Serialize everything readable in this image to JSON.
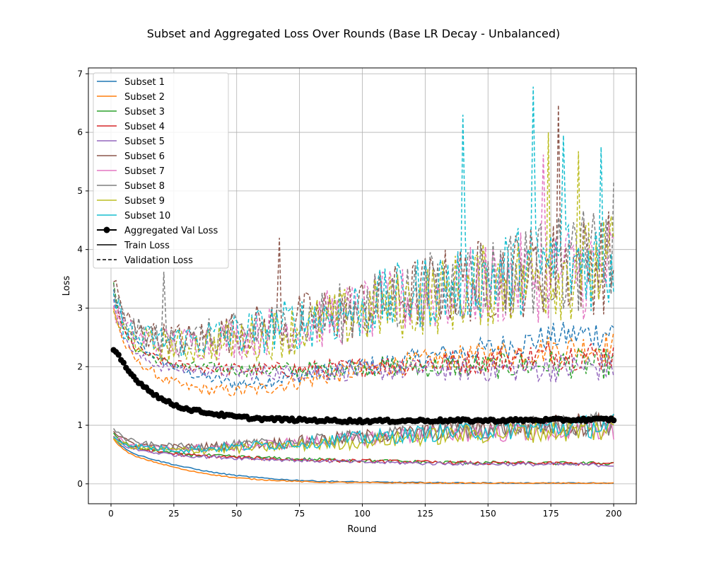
{
  "chart_data": {
    "type": "line",
    "title": "Subset and Aggregated Loss Over Rounds (Base LR Decay - Unbalanced)",
    "xlabel": "Round",
    "ylabel": "Loss",
    "xlim": [
      -9,
      209
    ],
    "ylim": [
      -0.34,
      7.1
    ],
    "xticks": [
      0,
      25,
      50,
      75,
      100,
      125,
      150,
      175,
      200
    ],
    "yticks": [
      0,
      1,
      2,
      3,
      4,
      5,
      6,
      7
    ],
    "grid": true,
    "legend_position": "upper-left",
    "legend": [
      {
        "label": "Subset 1",
        "color": "#1f77b4",
        "style": "solid"
      },
      {
        "label": "Subset 2",
        "color": "#ff7f0e",
        "style": "solid"
      },
      {
        "label": "Subset 3",
        "color": "#2ca02c",
        "style": "solid"
      },
      {
        "label": "Subset 4",
        "color": "#d62728",
        "style": "solid"
      },
      {
        "label": "Subset 5",
        "color": "#9467bd",
        "style": "solid"
      },
      {
        "label": "Subset 6",
        "color": "#8c564b",
        "style": "solid"
      },
      {
        "label": "Subset 7",
        "color": "#e377c2",
        "style": "solid"
      },
      {
        "label": "Subset 8",
        "color": "#7f7f7f",
        "style": "solid"
      },
      {
        "label": "Subset 9",
        "color": "#bcbd22",
        "style": "solid"
      },
      {
        "label": "Subset 10",
        "color": "#17becf",
        "style": "solid"
      },
      {
        "label": "Aggregated Val Loss",
        "color": "#000000",
        "style": "marker"
      },
      {
        "label": "Train Loss",
        "color": "#000000",
        "style": "solid"
      },
      {
        "label": "Validation Loss",
        "color": "#000000",
        "style": "dashed"
      }
    ],
    "series": [
      {
        "name": "Subset 1",
        "color": "#1f77b4",
        "train": [
          [
            1,
            0.78
          ],
          [
            5,
            0.62
          ],
          [
            10,
            0.5
          ],
          [
            20,
            0.38
          ],
          [
            30,
            0.28
          ],
          [
            40,
            0.2
          ],
          [
            50,
            0.14
          ],
          [
            60,
            0.1
          ],
          [
            70,
            0.07
          ],
          [
            80,
            0.05
          ],
          [
            100,
            0.03
          ],
          [
            125,
            0.02
          ],
          [
            150,
            0.015
          ],
          [
            200,
            0.01
          ]
        ],
        "val": [
          [
            1,
            3.3
          ],
          [
            5,
            2.7
          ],
          [
            10,
            2.4
          ],
          [
            20,
            2.1
          ],
          [
            30,
            1.9
          ],
          [
            40,
            1.8
          ],
          [
            50,
            1.7
          ],
          [
            60,
            1.75
          ],
          [
            75,
            1.85
          ],
          [
            100,
            2.0
          ],
          [
            125,
            2.15
          ],
          [
            150,
            2.3
          ],
          [
            175,
            2.5
          ],
          [
            200,
            2.6
          ]
        ]
      },
      {
        "name": "Subset 2",
        "color": "#ff7f0e",
        "train": [
          [
            1,
            0.76
          ],
          [
            5,
            0.58
          ],
          [
            10,
            0.46
          ],
          [
            20,
            0.34
          ],
          [
            30,
            0.23
          ],
          [
            40,
            0.16
          ],
          [
            50,
            0.1
          ],
          [
            60,
            0.07
          ],
          [
            70,
            0.05
          ],
          [
            80,
            0.03
          ],
          [
            100,
            0.02
          ],
          [
            150,
            0.01
          ],
          [
            200,
            0.01
          ]
        ],
        "val": [
          [
            1,
            3.0
          ],
          [
            5,
            2.4
          ],
          [
            10,
            2.1
          ],
          [
            20,
            1.8
          ],
          [
            30,
            1.65
          ],
          [
            40,
            1.6
          ],
          [
            50,
            1.58
          ],
          [
            60,
            1.62
          ],
          [
            75,
            1.75
          ],
          [
            100,
            1.95
          ],
          [
            125,
            2.1
          ],
          [
            150,
            2.2
          ],
          [
            175,
            2.3
          ],
          [
            200,
            2.35
          ]
        ]
      },
      {
        "name": "Subset 3",
        "color": "#2ca02c",
        "train": [
          [
            1,
            0.85
          ],
          [
            5,
            0.7
          ],
          [
            10,
            0.62
          ],
          [
            20,
            0.55
          ],
          [
            30,
            0.5
          ],
          [
            50,
            0.46
          ],
          [
            75,
            0.42
          ],
          [
            100,
            0.4
          ],
          [
            125,
            0.37
          ],
          [
            150,
            0.36
          ],
          [
            175,
            0.35
          ],
          [
            200,
            0.35
          ]
        ],
        "val": [
          [
            1,
            3.4
          ],
          [
            5,
            2.6
          ],
          [
            10,
            2.3
          ],
          [
            20,
            2.1
          ],
          [
            30,
            2.0
          ],
          [
            50,
            1.95
          ],
          [
            75,
            1.95
          ],
          [
            100,
            2.0
          ],
          [
            125,
            2.0
          ],
          [
            150,
            2.0
          ],
          [
            175,
            2.05
          ],
          [
            200,
            2.05
          ]
        ]
      },
      {
        "name": "Subset 4",
        "color": "#d62728",
        "train": [
          [
            1,
            0.82
          ],
          [
            5,
            0.68
          ],
          [
            10,
            0.6
          ],
          [
            20,
            0.54
          ],
          [
            30,
            0.49
          ],
          [
            50,
            0.45
          ],
          [
            75,
            0.41
          ],
          [
            100,
            0.39
          ],
          [
            125,
            0.37
          ],
          [
            150,
            0.35
          ],
          [
            175,
            0.35
          ],
          [
            200,
            0.34
          ]
        ],
        "val": [
          [
            1,
            3.2
          ],
          [
            5,
            2.6
          ],
          [
            10,
            2.3
          ],
          [
            20,
            2.1
          ],
          [
            30,
            2.0
          ],
          [
            50,
            1.95
          ],
          [
            75,
            1.95
          ],
          [
            100,
            2.0
          ],
          [
            125,
            2.05
          ],
          [
            150,
            2.1
          ],
          [
            175,
            2.2
          ],
          [
            200,
            2.2
          ]
        ]
      },
      {
        "name": "Subset 5",
        "color": "#9467bd",
        "train": [
          [
            1,
            0.8
          ],
          [
            5,
            0.66
          ],
          [
            10,
            0.58
          ],
          [
            20,
            0.52
          ],
          [
            30,
            0.48
          ],
          [
            50,
            0.44
          ],
          [
            75,
            0.4
          ],
          [
            100,
            0.37
          ],
          [
            125,
            0.35
          ],
          [
            150,
            0.34
          ],
          [
            175,
            0.33
          ],
          [
            200,
            0.32
          ]
        ],
        "val": [
          [
            1,
            3.1
          ],
          [
            5,
            2.5
          ],
          [
            10,
            2.2
          ],
          [
            20,
            2.0
          ],
          [
            30,
            1.95
          ],
          [
            50,
            1.9
          ],
          [
            75,
            1.9
          ],
          [
            100,
            1.92
          ],
          [
            125,
            1.95
          ],
          [
            150,
            1.95
          ],
          [
            175,
            1.98
          ],
          [
            200,
            2.0
          ]
        ]
      },
      {
        "name": "Subset 6",
        "color": "#8c564b",
        "train": [
          [
            1,
            0.9
          ],
          [
            5,
            0.75
          ],
          [
            10,
            0.68
          ],
          [
            20,
            0.62
          ],
          [
            30,
            0.62
          ],
          [
            50,
            0.66
          ],
          [
            75,
            0.72
          ],
          [
            100,
            0.8
          ],
          [
            125,
            0.88
          ],
          [
            150,
            0.95
          ],
          [
            175,
            1.0
          ],
          [
            200,
            1.05
          ]
        ],
        "val": [
          [
            1,
            3.5
          ],
          [
            5,
            2.9
          ],
          [
            10,
            2.6
          ],
          [
            20,
            2.5
          ],
          [
            30,
            2.45
          ],
          [
            50,
            2.6
          ],
          [
            75,
            2.8
          ],
          [
            100,
            3.0
          ],
          [
            125,
            3.3
          ],
          [
            150,
            3.5
          ],
          [
            175,
            3.7
          ],
          [
            200,
            3.8
          ]
        ]
      },
      {
        "name": "Subset 7",
        "color": "#e377c2",
        "train": [
          [
            1,
            0.8
          ],
          [
            5,
            0.72
          ],
          [
            10,
            0.65
          ],
          [
            20,
            0.6
          ],
          [
            30,
            0.6
          ],
          [
            50,
            0.64
          ],
          [
            75,
            0.7
          ],
          [
            100,
            0.78
          ],
          [
            125,
            0.85
          ],
          [
            150,
            0.88
          ],
          [
            175,
            0.9
          ],
          [
            200,
            0.92
          ]
        ],
        "val": [
          [
            1,
            3.0
          ],
          [
            5,
            2.7
          ],
          [
            10,
            2.5
          ],
          [
            20,
            2.4
          ],
          [
            30,
            2.4
          ],
          [
            50,
            2.5
          ],
          [
            75,
            2.7
          ],
          [
            100,
            2.95
          ],
          [
            125,
            3.2
          ],
          [
            150,
            3.4
          ],
          [
            175,
            3.6
          ],
          [
            200,
            3.7
          ]
        ]
      },
      {
        "name": "Subset 8",
        "color": "#7f7f7f",
        "train": [
          [
            1,
            0.95
          ],
          [
            5,
            0.78
          ],
          [
            10,
            0.7
          ],
          [
            20,
            0.64
          ],
          [
            30,
            0.63
          ],
          [
            50,
            0.66
          ],
          [
            75,
            0.72
          ],
          [
            100,
            0.8
          ],
          [
            125,
            0.88
          ],
          [
            150,
            0.94
          ],
          [
            175,
            0.98
          ],
          [
            200,
            1.02
          ]
        ],
        "val": [
          [
            1,
            3.3
          ],
          [
            5,
            2.8
          ],
          [
            10,
            2.6
          ],
          [
            20,
            2.5
          ],
          [
            30,
            2.45
          ],
          [
            50,
            2.55
          ],
          [
            75,
            2.75
          ],
          [
            100,
            3.0
          ],
          [
            125,
            3.3
          ],
          [
            150,
            3.55
          ],
          [
            175,
            3.75
          ],
          [
            200,
            3.85
          ]
        ]
      },
      {
        "name": "Subset 9",
        "color": "#bcbd22",
        "train": [
          [
            1,
            0.75
          ],
          [
            5,
            0.68
          ],
          [
            10,
            0.62
          ],
          [
            20,
            0.58
          ],
          [
            30,
            0.57
          ],
          [
            50,
            0.6
          ],
          [
            75,
            0.66
          ],
          [
            100,
            0.72
          ],
          [
            125,
            0.8
          ],
          [
            150,
            0.86
          ],
          [
            175,
            0.9
          ],
          [
            200,
            0.92
          ]
        ],
        "val": [
          [
            1,
            2.9
          ],
          [
            5,
            2.6
          ],
          [
            10,
            2.45
          ],
          [
            20,
            2.35
          ],
          [
            30,
            2.35
          ],
          [
            50,
            2.45
          ],
          [
            75,
            2.65
          ],
          [
            100,
            2.9
          ],
          [
            125,
            3.15
          ],
          [
            150,
            3.4
          ],
          [
            175,
            3.6
          ],
          [
            200,
            3.7
          ]
        ]
      },
      {
        "name": "Subset 10",
        "color": "#17becf",
        "train": [
          [
            1,
            0.8
          ],
          [
            5,
            0.7
          ],
          [
            10,
            0.64
          ],
          [
            20,
            0.6
          ],
          [
            30,
            0.59
          ],
          [
            50,
            0.63
          ],
          [
            75,
            0.7
          ],
          [
            100,
            0.78
          ],
          [
            125,
            0.86
          ],
          [
            150,
            0.92
          ],
          [
            175,
            0.96
          ],
          [
            200,
            1.0
          ]
        ],
        "val": [
          [
            1,
            3.2
          ],
          [
            5,
            2.7
          ],
          [
            10,
            2.5
          ],
          [
            20,
            2.45
          ],
          [
            30,
            2.45
          ],
          [
            50,
            2.55
          ],
          [
            75,
            2.75
          ],
          [
            100,
            3.0
          ],
          [
            125,
            3.3
          ],
          [
            150,
            3.55
          ],
          [
            175,
            3.75
          ],
          [
            200,
            3.85
          ]
        ]
      }
    ],
    "aggregated_val_loss": [
      [
        1,
        2.28
      ],
      [
        3,
        2.18
      ],
      [
        5,
        2.05
      ],
      [
        7,
        1.92
      ],
      [
        10,
        1.78
      ],
      [
        15,
        1.6
      ],
      [
        20,
        1.45
      ],
      [
        25,
        1.35
      ],
      [
        30,
        1.28
      ],
      [
        40,
        1.2
      ],
      [
        50,
        1.14
      ],
      [
        60,
        1.11
      ],
      [
        75,
        1.09
      ],
      [
        100,
        1.07
      ],
      [
        125,
        1.08
      ],
      [
        150,
        1.08
      ],
      [
        175,
        1.09
      ],
      [
        200,
        1.1
      ]
    ],
    "spikes": [
      {
        "series": "Subset 10",
        "round": 140,
        "value": 6.3
      },
      {
        "series": "Subset 10",
        "round": 168,
        "value": 6.78
      },
      {
        "series": "Subset 6",
        "round": 178,
        "value": 6.47
      },
      {
        "series": "Subset 9",
        "round": 174,
        "value": 6.0
      },
      {
        "series": "Subset 10",
        "round": 180,
        "value": 5.95
      },
      {
        "series": "Subset 7",
        "round": 172,
        "value": 5.62
      },
      {
        "series": "Subset 10",
        "round": 195,
        "value": 5.75
      },
      {
        "series": "Subset 9",
        "round": 186,
        "value": 5.68
      },
      {
        "series": "Subset 8",
        "round": 200,
        "value": 5.15
      },
      {
        "series": "Subset 6",
        "round": 67,
        "value": 4.2
      },
      {
        "series": "Subset 8",
        "round": 21,
        "value": 3.62
      }
    ]
  }
}
